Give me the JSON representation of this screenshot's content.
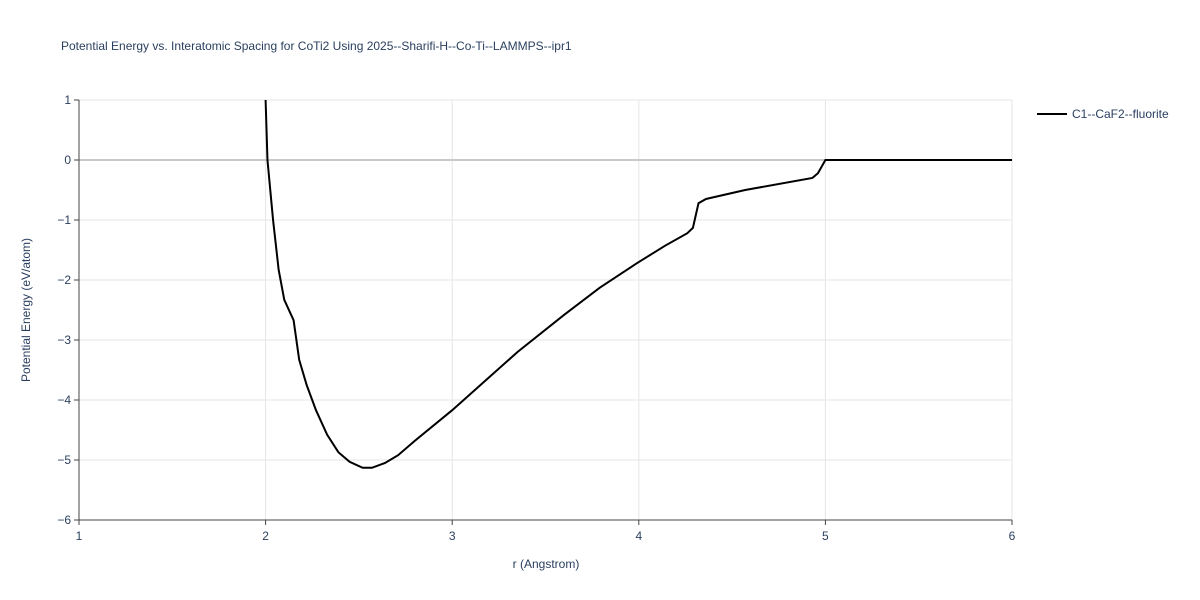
{
  "chart_data": {
    "type": "line",
    "title": "Potential Energy vs. Interatomic Spacing for CoTi2 Using 2025--Sharifi-H--Co-Ti--LAMMPS--ipr1",
    "x_label": "r (Angstrom)",
    "y_label": "Potential Energy (eV/atom)",
    "xlim": [
      1,
      6
    ],
    "ylim": [
      -6,
      1
    ],
    "xticks": [
      1,
      2,
      3,
      4,
      5,
      6
    ],
    "yticks": [
      1,
      0,
      {
        "value": -1,
        "label": "−1"
      },
      {
        "value": -2,
        "label": "−2"
      },
      {
        "value": -3,
        "label": "−3"
      },
      {
        "value": -4,
        "label": "−4"
      },
      {
        "value": -5,
        "label": "−5"
      },
      {
        "value": -6,
        "label": "−6"
      }
    ],
    "grid": true,
    "legend": "right",
    "x": [
      2.0,
      2.01,
      2.04,
      2.07,
      2.1,
      2.15,
      2.18,
      2.22,
      2.27,
      2.33,
      2.39,
      2.45,
      2.52,
      2.57,
      2.64,
      2.71,
      2.8,
      3.0,
      3.35,
      3.6,
      3.79,
      3.99,
      4.14,
      4.26,
      4.29,
      4.32,
      4.36,
      4.57,
      4.93,
      4.96,
      5.0,
      6.0
    ],
    "series": [
      {
        "name": "C1--CaF2--fluorite",
        "color": "#000000",
        "values": [
          1.0,
          0.0,
          -1.0,
          -1.83,
          -2.33,
          -2.67,
          -3.33,
          -3.75,
          -4.17,
          -4.58,
          -4.87,
          -5.03,
          -5.13,
          -5.13,
          -5.05,
          -4.92,
          -4.68,
          -4.17,
          -3.2,
          -2.58,
          -2.13,
          -1.72,
          -1.43,
          -1.22,
          -1.13,
          -0.72,
          -0.65,
          -0.5,
          -0.3,
          -0.22,
          0.0,
          0.0
        ]
      }
    ]
  }
}
